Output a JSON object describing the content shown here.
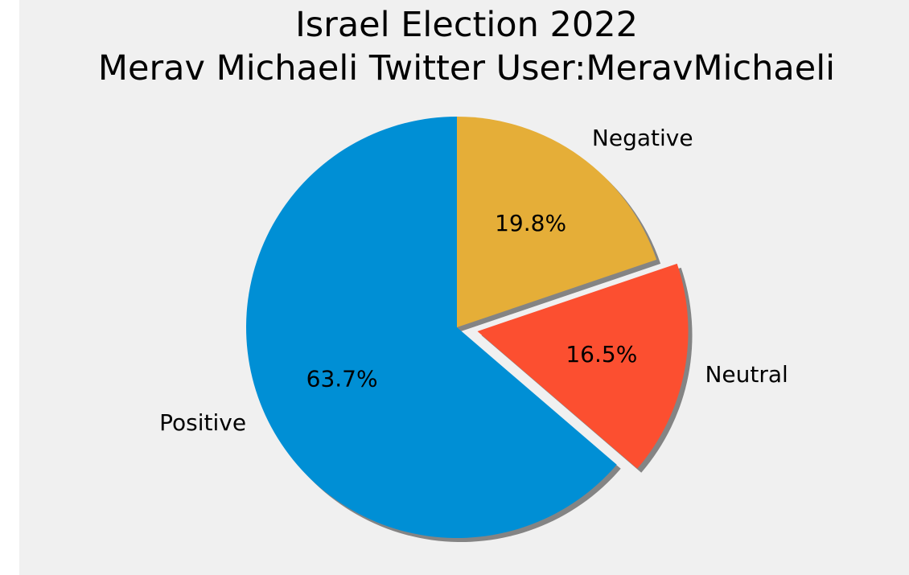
{
  "chart_data": {
    "type": "pie",
    "title": "Israel Election 2022",
    "subtitle": "Merav Michaeli Twitter User:MeravMichaeli",
    "slices": [
      {
        "label": "Positive",
        "value": 63.7,
        "value_label": "63.7%",
        "color": "#008fd5",
        "exploded": false
      },
      {
        "label": "Neutral",
        "value": 16.5,
        "value_label": "16.5%",
        "color": "#fc4f30",
        "exploded": true
      },
      {
        "label": "Negative",
        "value": 19.8,
        "value_label": "19.8%",
        "color": "#e5ae38",
        "exploded": false
      }
    ],
    "start_angle_deg": 90,
    "direction": "counterclockwise",
    "shadow": true
  }
}
